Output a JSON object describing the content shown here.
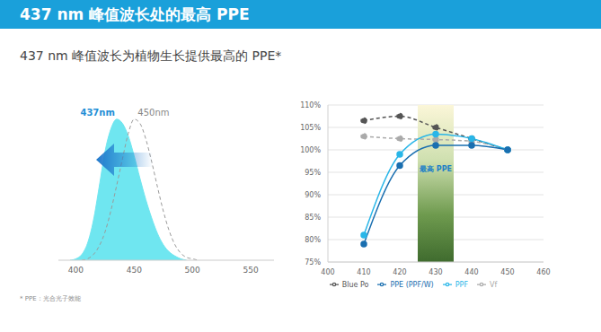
{
  "title": "437 nm 峰值波长处的最高 PPE",
  "subtitle": "437 nm 峰值波长为植物生长提供最高的 PPE*",
  "footnote": "* PPE：光合光子效能",
  "chart_data": [
    {
      "type": "area",
      "x": [
        395,
        400,
        405,
        410,
        415,
        420,
        425,
        430,
        435,
        440,
        445,
        450,
        455,
        460,
        465,
        470,
        475,
        480,
        485,
        490,
        495,
        500,
        505
      ],
      "xlim": [
        385,
        570
      ],
      "xticks": [
        400,
        450,
        500,
        550
      ],
      "ylim": [
        0,
        105
      ],
      "tick_labels": "x",
      "series": [
        {
          "name": "437nm",
          "color": "#6fe6f0",
          "type": "area",
          "values": [
            0,
            1,
            4,
            12,
            28,
            52,
            77,
            93,
            100,
            97,
            88,
            74,
            58,
            43,
            30,
            19,
            11,
            6,
            3,
            1,
            0,
            null,
            null
          ]
        },
        {
          "name": "450nm",
          "color": "#9a9a9a",
          "type": "line",
          "line_style": "dashed",
          "values": [
            null,
            null,
            0,
            1,
            4,
            10,
            20,
            35,
            53,
            72,
            90,
            100,
            97,
            86,
            70,
            52,
            35,
            21,
            11,
            5,
            2,
            1,
            0
          ]
        }
      ]
    },
    {
      "type": "line",
      "x": [
        410,
        420,
        430,
        440,
        450
      ],
      "xlim": [
        400,
        460
      ],
      "xticks": [
        400,
        410,
        420,
        430,
        440,
        450,
        460
      ],
      "ylim": [
        75,
        110
      ],
      "yticks": [
        {
          "value": 75,
          "label": "75%"
        },
        {
          "value": 80,
          "label": "80%"
        },
        {
          "value": 85,
          "label": "85%"
        },
        {
          "value": 90,
          "label": "90%"
        },
        {
          "value": 95,
          "label": "95%"
        },
        {
          "value": 100,
          "label": "100%"
        },
        {
          "value": 105,
          "label": "105%"
        },
        {
          "value": 110,
          "label": "110%"
        }
      ],
      "grid": true,
      "legend": "bottom",
      "annotations": [
        {
          "text": "最高 PPE",
          "x": [
            425,
            435
          ]
        }
      ],
      "series": [
        {
          "name": "Blue Po",
          "color": "#555555",
          "line_style": "dashed",
          "marker": "circle",
          "values": [
            106.5,
            107.5,
            105,
            102.5,
            100
          ]
        },
        {
          "name": "Vf",
          "color": "#aaaaaa",
          "line_style": "dashed",
          "marker": "circle",
          "values": [
            103,
            102.5,
            102.3,
            101.9,
            100
          ]
        },
        {
          "name": "PPF",
          "color": "#29b6e8",
          "line_style": "solid",
          "marker": "circle",
          "values": [
            81,
            99,
            103.5,
            102.5,
            100
          ]
        },
        {
          "name": "PPE (PPF/W)",
          "color": "#1a6fb0",
          "line_style": "solid",
          "marker": "circle",
          "values": [
            79,
            96.5,
            101,
            101,
            100
          ]
        }
      ]
    }
  ]
}
